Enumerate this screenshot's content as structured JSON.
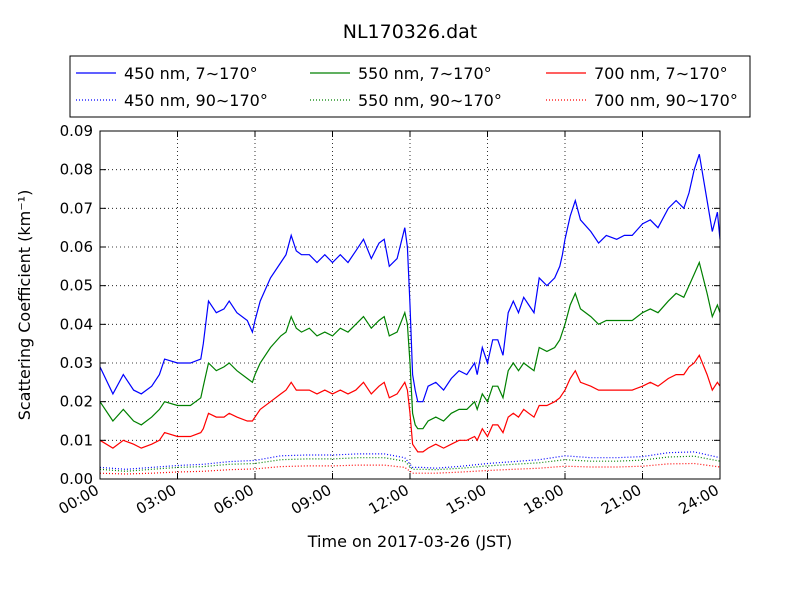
{
  "chart_data": {
    "type": "line",
    "title": "NL170326.dat",
    "xlabel": "Time on 2017-03-26 (JST)",
    "ylabel": "Scattering Coefficient (km⁻¹)",
    "x_unit": "hours",
    "xlim": [
      0,
      24
    ],
    "ylim": [
      0,
      0.09
    ],
    "x_ticks": [
      0,
      3,
      6,
      9,
      12,
      15,
      18,
      21,
      24
    ],
    "x_tick_labels": [
      "00:00",
      "03:00",
      "06:00",
      "09:00",
      "12:00",
      "15:00",
      "18:00",
      "21:00",
      "24:00"
    ],
    "y_ticks": [
      0,
      0.01,
      0.02,
      0.03,
      0.04,
      0.05,
      0.06,
      0.07,
      0.08,
      0.09
    ],
    "y_tick_labels": [
      "0.00",
      "0.01",
      "0.02",
      "0.03",
      "0.04",
      "0.05",
      "0.06",
      "0.07",
      "0.08",
      "0.09"
    ],
    "grid": true,
    "legend_position": "top, above plot",
    "series": [
      {
        "name": "450 nm, 7∼170°",
        "color": "#0000ff",
        "style": "solid",
        "x": [
          0,
          0.5,
          0.9,
          1.3,
          1.6,
          2.0,
          2.3,
          2.5,
          3.0,
          3.5,
          3.9,
          4.0,
          4.2,
          4.5,
          4.8,
          5.0,
          5.3,
          5.7,
          5.9,
          6.0,
          6.2,
          6.6,
          7.0,
          7.2,
          7.4,
          7.6,
          7.8,
          8.1,
          8.4,
          8.7,
          9.0,
          9.3,
          9.6,
          9.9,
          10.2,
          10.5,
          10.8,
          11.0,
          11.2,
          11.5,
          11.8,
          11.9,
          12.0,
          12.1,
          12.2,
          12.3,
          12.5,
          12.7,
          13.0,
          13.3,
          13.6,
          13.9,
          14.2,
          14.5,
          14.6,
          14.8,
          15.0,
          15.2,
          15.4,
          15.6,
          15.8,
          16.0,
          16.2,
          16.4,
          16.6,
          16.8,
          17.0,
          17.3,
          17.6,
          17.8,
          17.9,
          18.0,
          18.2,
          18.4,
          18.6,
          19.0,
          19.3,
          19.6,
          20.0,
          20.3,
          20.6,
          21.0,
          21.3,
          21.6,
          22.0,
          22.3,
          22.6,
          22.8,
          23.0,
          23.2,
          23.5,
          23.7,
          23.9,
          24.0
        ],
        "y": [
          0.029,
          0.022,
          0.027,
          0.023,
          0.022,
          0.024,
          0.027,
          0.031,
          0.03,
          0.03,
          0.031,
          0.035,
          0.046,
          0.043,
          0.044,
          0.046,
          0.043,
          0.041,
          0.038,
          0.041,
          0.046,
          0.052,
          0.056,
          0.058,
          0.063,
          0.059,
          0.058,
          0.058,
          0.056,
          0.058,
          0.056,
          0.058,
          0.056,
          0.059,
          0.062,
          0.057,
          0.061,
          0.062,
          0.055,
          0.057,
          0.065,
          0.06,
          0.045,
          0.027,
          0.023,
          0.02,
          0.02,
          0.024,
          0.025,
          0.023,
          0.026,
          0.028,
          0.027,
          0.03,
          0.027,
          0.034,
          0.03,
          0.036,
          0.036,
          0.032,
          0.043,
          0.046,
          0.043,
          0.047,
          0.045,
          0.043,
          0.052,
          0.05,
          0.052,
          0.055,
          0.058,
          0.062,
          0.068,
          0.072,
          0.067,
          0.064,
          0.061,
          0.063,
          0.062,
          0.063,
          0.063,
          0.066,
          0.067,
          0.065,
          0.07,
          0.072,
          0.07,
          0.074,
          0.08,
          0.084,
          0.072,
          0.064,
          0.069,
          0.062
        ]
      },
      {
        "name": "450 nm, 90∼170°",
        "color": "#0000ff",
        "style": "dotted",
        "x": [
          0,
          1,
          2,
          3,
          4,
          5,
          6,
          7,
          8,
          9,
          10,
          11,
          11.8,
          12.1,
          12.5,
          13,
          14,
          15,
          16,
          17,
          18,
          19,
          20,
          21,
          22,
          23,
          24
        ],
        "y": [
          0.003,
          0.0025,
          0.003,
          0.0035,
          0.0038,
          0.0045,
          0.0048,
          0.006,
          0.0062,
          0.0062,
          0.0065,
          0.0065,
          0.0055,
          0.003,
          0.003,
          0.0028,
          0.0033,
          0.004,
          0.0045,
          0.005,
          0.006,
          0.0055,
          0.0055,
          0.0058,
          0.0068,
          0.007,
          0.0055
        ]
      },
      {
        "name": "550 nm, 7∼170°",
        "color": "#008000",
        "style": "solid",
        "x": [
          0,
          0.5,
          0.9,
          1.3,
          1.6,
          2.0,
          2.3,
          2.5,
          3.0,
          3.5,
          3.9,
          4.0,
          4.2,
          4.5,
          4.8,
          5.0,
          5.3,
          5.7,
          5.9,
          6.0,
          6.2,
          6.6,
          7.0,
          7.2,
          7.4,
          7.6,
          7.8,
          8.1,
          8.4,
          8.7,
          9.0,
          9.3,
          9.6,
          9.9,
          10.2,
          10.5,
          10.8,
          11.0,
          11.2,
          11.5,
          11.8,
          11.9,
          12.0,
          12.1,
          12.2,
          12.3,
          12.5,
          12.7,
          13.0,
          13.3,
          13.6,
          13.9,
          14.2,
          14.5,
          14.6,
          14.8,
          15.0,
          15.2,
          15.4,
          15.6,
          15.8,
          16.0,
          16.2,
          16.4,
          16.6,
          16.8,
          17.0,
          17.3,
          17.6,
          17.8,
          17.9,
          18.0,
          18.2,
          18.4,
          18.6,
          19.0,
          19.3,
          19.6,
          20.0,
          20.3,
          20.6,
          21.0,
          21.3,
          21.6,
          22.0,
          22.3,
          22.6,
          22.8,
          23.0,
          23.2,
          23.5,
          23.7,
          23.9,
          24.0
        ],
        "y": [
          0.02,
          0.015,
          0.018,
          0.015,
          0.014,
          0.016,
          0.018,
          0.02,
          0.019,
          0.019,
          0.021,
          0.024,
          0.03,
          0.028,
          0.029,
          0.03,
          0.028,
          0.026,
          0.025,
          0.027,
          0.03,
          0.034,
          0.037,
          0.038,
          0.042,
          0.039,
          0.038,
          0.039,
          0.037,
          0.038,
          0.037,
          0.039,
          0.038,
          0.04,
          0.042,
          0.039,
          0.041,
          0.042,
          0.037,
          0.038,
          0.043,
          0.04,
          0.03,
          0.017,
          0.014,
          0.013,
          0.013,
          0.015,
          0.016,
          0.015,
          0.017,
          0.018,
          0.018,
          0.02,
          0.018,
          0.022,
          0.02,
          0.024,
          0.024,
          0.021,
          0.028,
          0.03,
          0.028,
          0.03,
          0.029,
          0.028,
          0.034,
          0.033,
          0.034,
          0.036,
          0.038,
          0.04,
          0.045,
          0.048,
          0.044,
          0.042,
          0.04,
          0.041,
          0.041,
          0.041,
          0.041,
          0.043,
          0.044,
          0.043,
          0.046,
          0.048,
          0.047,
          0.05,
          0.053,
          0.056,
          0.048,
          0.042,
          0.045,
          0.043
        ]
      },
      {
        "name": "550 nm, 90∼170°",
        "color": "#008000",
        "style": "dotted",
        "x": [
          0,
          1,
          2,
          3,
          4,
          5,
          6,
          7,
          8,
          9,
          10,
          11,
          11.8,
          12.1,
          12.5,
          13,
          14,
          15,
          16,
          17,
          18,
          19,
          20,
          21,
          22,
          23,
          24
        ],
        "y": [
          0.0025,
          0.002,
          0.0025,
          0.003,
          0.0032,
          0.0038,
          0.004,
          0.005,
          0.0052,
          0.0052,
          0.0055,
          0.0055,
          0.0046,
          0.0025,
          0.0025,
          0.0024,
          0.0028,
          0.0034,
          0.0038,
          0.0042,
          0.005,
          0.0046,
          0.0046,
          0.0049,
          0.0057,
          0.0059,
          0.0046
        ]
      },
      {
        "name": "700 nm, 7∼170°",
        "color": "#ff0000",
        "style": "solid",
        "x": [
          0,
          0.5,
          0.9,
          1.3,
          1.6,
          2.0,
          2.3,
          2.5,
          3.0,
          3.5,
          3.9,
          4.0,
          4.2,
          4.5,
          4.8,
          5.0,
          5.3,
          5.7,
          5.9,
          6.0,
          6.2,
          6.6,
          7.0,
          7.2,
          7.4,
          7.6,
          7.8,
          8.1,
          8.4,
          8.7,
          9.0,
          9.3,
          9.6,
          9.9,
          10.2,
          10.5,
          10.8,
          11.0,
          11.2,
          11.5,
          11.8,
          11.9,
          12.0,
          12.1,
          12.2,
          12.3,
          12.5,
          12.7,
          13.0,
          13.3,
          13.6,
          13.9,
          14.2,
          14.5,
          14.6,
          14.8,
          15.0,
          15.2,
          15.4,
          15.6,
          15.8,
          16.0,
          16.2,
          16.4,
          16.6,
          16.8,
          17.0,
          17.3,
          17.6,
          17.8,
          17.9,
          18.0,
          18.2,
          18.4,
          18.6,
          19.0,
          19.3,
          19.6,
          20.0,
          20.3,
          20.6,
          21.0,
          21.3,
          21.6,
          22.0,
          22.3,
          22.6,
          22.8,
          23.0,
          23.2,
          23.5,
          23.7,
          23.9,
          24.0
        ],
        "y": [
          0.01,
          0.008,
          0.01,
          0.009,
          0.008,
          0.009,
          0.01,
          0.012,
          0.011,
          0.011,
          0.012,
          0.013,
          0.017,
          0.016,
          0.016,
          0.017,
          0.016,
          0.015,
          0.015,
          0.016,
          0.018,
          0.02,
          0.022,
          0.023,
          0.025,
          0.023,
          0.023,
          0.023,
          0.022,
          0.023,
          0.022,
          0.023,
          0.022,
          0.023,
          0.025,
          0.022,
          0.024,
          0.025,
          0.021,
          0.022,
          0.025,
          0.023,
          0.017,
          0.009,
          0.008,
          0.007,
          0.007,
          0.008,
          0.009,
          0.008,
          0.009,
          0.01,
          0.01,
          0.011,
          0.01,
          0.013,
          0.011,
          0.014,
          0.014,
          0.012,
          0.016,
          0.017,
          0.016,
          0.018,
          0.017,
          0.016,
          0.019,
          0.019,
          0.02,
          0.021,
          0.022,
          0.023,
          0.026,
          0.028,
          0.025,
          0.024,
          0.023,
          0.023,
          0.023,
          0.023,
          0.023,
          0.024,
          0.025,
          0.024,
          0.026,
          0.027,
          0.027,
          0.029,
          0.03,
          0.032,
          0.027,
          0.023,
          0.025,
          0.024
        ]
      },
      {
        "name": "700 nm, 90∼170°",
        "color": "#ff0000",
        "style": "dotted",
        "x": [
          0,
          1,
          2,
          3,
          4,
          5,
          6,
          7,
          8,
          9,
          10,
          11,
          11.8,
          12.1,
          12.5,
          13,
          14,
          15,
          16,
          17,
          18,
          19,
          20,
          21,
          22,
          23,
          24
        ],
        "y": [
          0.0015,
          0.0013,
          0.0015,
          0.0018,
          0.002,
          0.0024,
          0.0026,
          0.0032,
          0.0034,
          0.0034,
          0.0036,
          0.0036,
          0.003,
          0.0015,
          0.0015,
          0.0015,
          0.0018,
          0.0022,
          0.0025,
          0.0028,
          0.0033,
          0.0031,
          0.0031,
          0.0033,
          0.0039,
          0.004,
          0.0031
        ]
      }
    ]
  }
}
